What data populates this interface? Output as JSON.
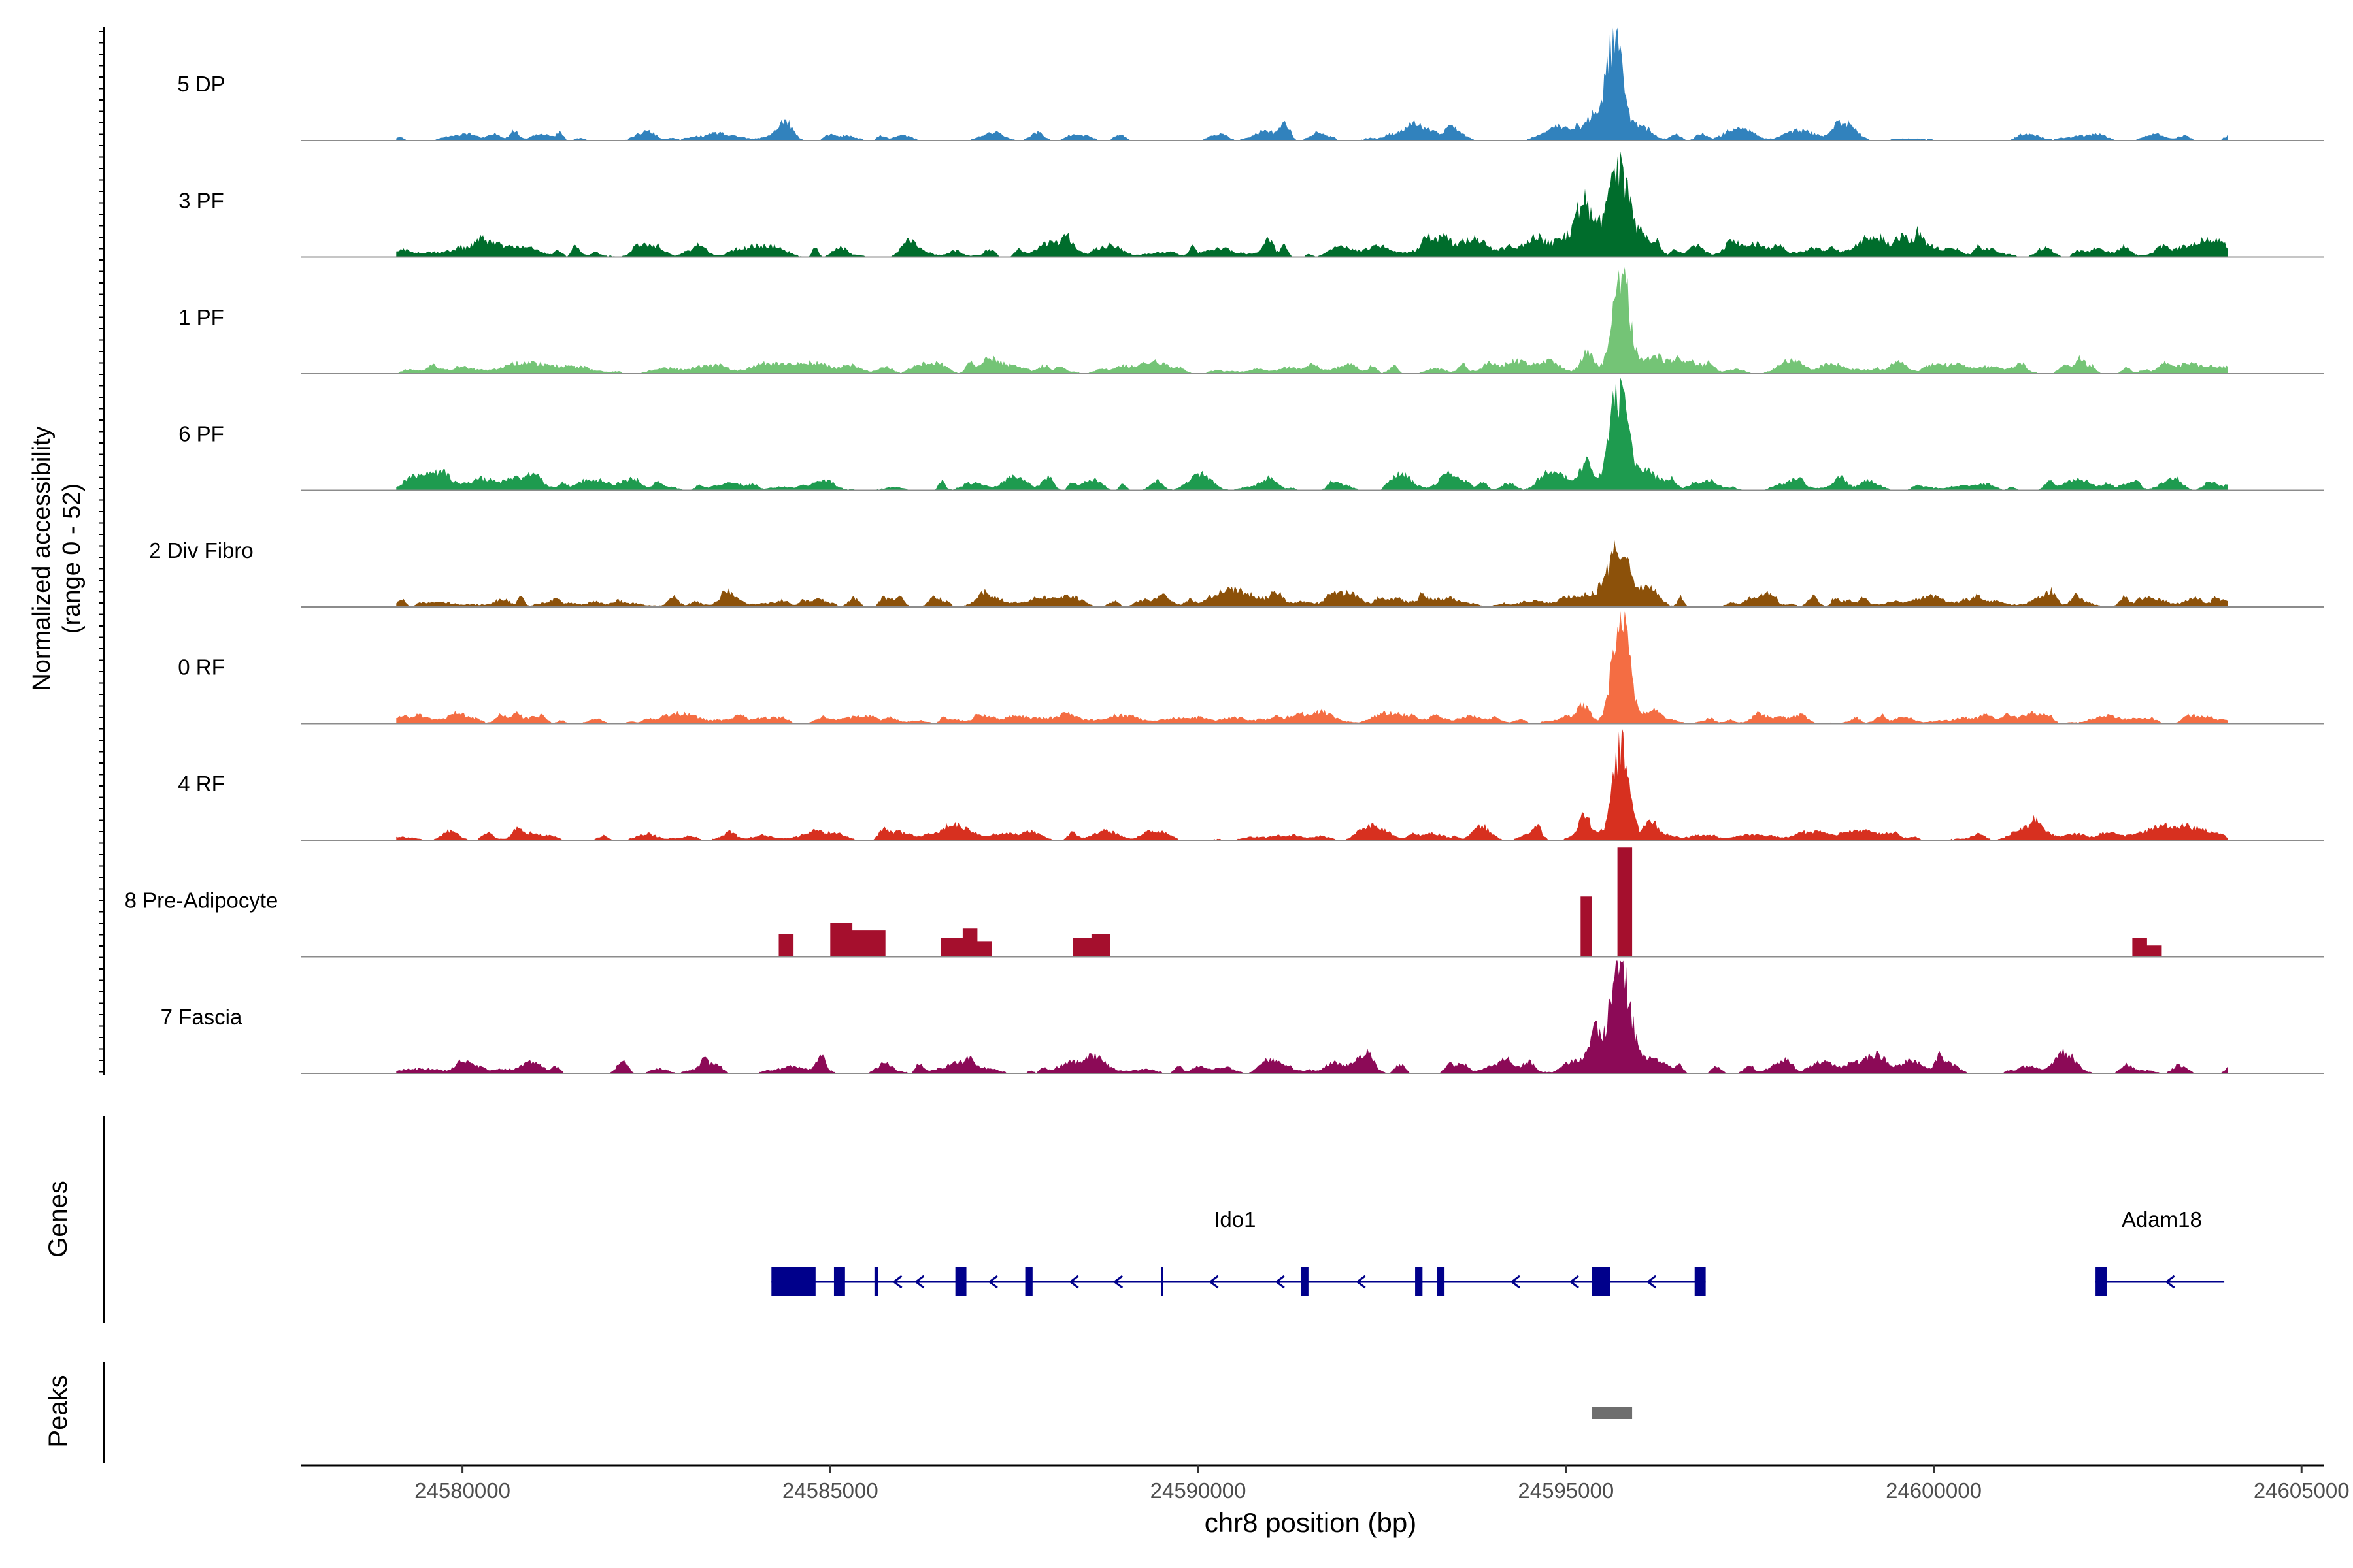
{
  "chart_data": {
    "type": "coverage",
    "y_axis_label_line1": "Normalized accessibility",
    "y_axis_label_line2": "(range 0 - 52)",
    "y_range": [
      0,
      52
    ],
    "x_range": [
      24577800,
      24605300
    ],
    "x_label": "chr8 position (bp)",
    "x_ticks": [
      24580000,
      24585000,
      24590000,
      24595000,
      24600000,
      24605000
    ],
    "tracks": [
      {
        "name": "5 DP",
        "color": "#3182bd",
        "style": "smooth",
        "peaks": [
          [
            24595650,
            52,
            120
          ],
          [
            24595350,
            9,
            80
          ],
          [
            24596000,
            6,
            120
          ],
          [
            24598800,
            9,
            140
          ],
          [
            24584400,
            5,
            90
          ],
          [
            24593000,
            3,
            400
          ],
          [
            24580000,
            2,
            200
          ]
        ],
        "noise": 1.4,
        "density": 0.45,
        "seed": 11
      },
      {
        "name": "3 PF",
        "color": "#006d2c",
        "style": "smooth",
        "peaks": [
          [
            24595700,
            44,
            140
          ],
          [
            24595250,
            25,
            100
          ],
          [
            24596100,
            8,
            150
          ],
          [
            24599500,
            6,
            400
          ],
          [
            24593500,
            5,
            500
          ]
        ],
        "noise": 2.0,
        "density": 0.75,
        "seed": 23
      },
      {
        "name": "1 PF",
        "color": "#74c476",
        "style": "smooth",
        "peaks": [
          [
            24595750,
            50,
            110
          ],
          [
            24595300,
            12,
            80
          ],
          [
            24596200,
            4,
            120
          ],
          [
            24594500,
            3,
            200
          ]
        ],
        "noise": 1.6,
        "density": 0.8,
        "seed": 37
      },
      {
        "name": "6 PF",
        "color": "#1e9b4f",
        "style": "smooth",
        "peaks": [
          [
            24595700,
            48,
            120
          ],
          [
            24595250,
            10,
            80
          ],
          [
            24596100,
            8,
            150
          ],
          [
            24592800,
            8,
            120
          ],
          [
            24593400,
            7,
            120
          ],
          [
            24581000,
            5,
            150
          ]
        ],
        "noise": 2.2,
        "density": 0.7,
        "seed": 51
      },
      {
        "name": "2 Div Fibro",
        "color": "#8c510a",
        "style": "smooth",
        "peaks": [
          [
            24595700,
            28,
            140
          ],
          [
            24595300,
            6,
            150
          ],
          [
            24596100,
            5,
            150
          ],
          [
            24587200,
            5,
            150
          ],
          [
            24590400,
            4,
            200
          ]
        ],
        "noise": 1.8,
        "density": 0.8,
        "seed": 67
      },
      {
        "name": "0 RF",
        "color": "#f46d43",
        "style": "smooth",
        "peaks": [
          [
            24595750,
            55,
            110
          ],
          [
            24595250,
            8,
            80
          ],
          [
            24596200,
            6,
            120
          ]
        ],
        "noise": 1.2,
        "density": 0.85,
        "seed": 79
      },
      {
        "name": "4 RF",
        "color": "#d7301f",
        "style": "smooth",
        "peaks": [
          [
            24595750,
            48,
            110
          ],
          [
            24595250,
            9,
            70
          ],
          [
            24596150,
            8,
            80
          ]
        ],
        "noise": 1.6,
        "density": 0.6,
        "seed": 97
      },
      {
        "name": "8 Pre-Adipocyte",
        "color": "#a50f2d",
        "style": "bars",
        "bars": [
          [
            24584300,
            24584500,
            12
          ],
          [
            24585000,
            24585300,
            18
          ],
          [
            24585300,
            24585750,
            14
          ],
          [
            24586500,
            24586800,
            10
          ],
          [
            24586800,
            24587000,
            15
          ],
          [
            24587000,
            24587200,
            8
          ],
          [
            24588300,
            24588550,
            10
          ],
          [
            24588550,
            24588800,
            12
          ],
          [
            24595200,
            24595350,
            32
          ],
          [
            24595700,
            24595900,
            58
          ],
          [
            24602700,
            24602900,
            10
          ],
          [
            24602900,
            24603100,
            6
          ]
        ],
        "seed": 101
      },
      {
        "name": "7 Fascia",
        "color": "#8c0a57",
        "style": "smooth",
        "peaks": [
          [
            24595750,
            55,
            120
          ],
          [
            24595400,
            15,
            90
          ],
          [
            24596150,
            6,
            100
          ],
          [
            24592200,
            7,
            150
          ],
          [
            24590900,
            4,
            100
          ]
        ],
        "noise": 2.0,
        "density": 0.6,
        "seed": 113
      }
    ],
    "genes": {
      "label": "Genes",
      "color": "#00008b",
      "list": [
        {
          "name": "Ido1",
          "start": 24584200,
          "end": 24596900,
          "label_pos": 24590500,
          "exons": [
            [
              24584200,
              24584800
            ],
            [
              24585050,
              24585200
            ],
            [
              24585600,
              24585650
            ],
            [
              24586700,
              24586850
            ],
            [
              24587650,
              24587750
            ],
            [
              24589500,
              24589520
            ],
            [
              24591400,
              24591500
            ],
            [
              24592950,
              24593050
            ],
            [
              24593250,
              24593350
            ],
            [
              24595350,
              24595600
            ],
            [
              24596750,
              24596900
            ]
          ],
          "arrows": [
            24585900,
            24586200,
            24587200,
            24588300,
            24588900,
            24590200,
            24591100,
            24592200,
            24594300,
            24595100,
            24596150
          ]
        },
        {
          "name": "Adam18",
          "start": 24602200,
          "end": 24603950,
          "label_pos": 24603100,
          "exons": [
            [
              24602200,
              24602350
            ]
          ],
          "arrows": [
            24603200
          ]
        }
      ]
    },
    "peaks_track": {
      "label": "Peaks",
      "color": "#6e6e6e",
      "regions": [
        [
          24595350,
          24595900
        ]
      ]
    }
  }
}
